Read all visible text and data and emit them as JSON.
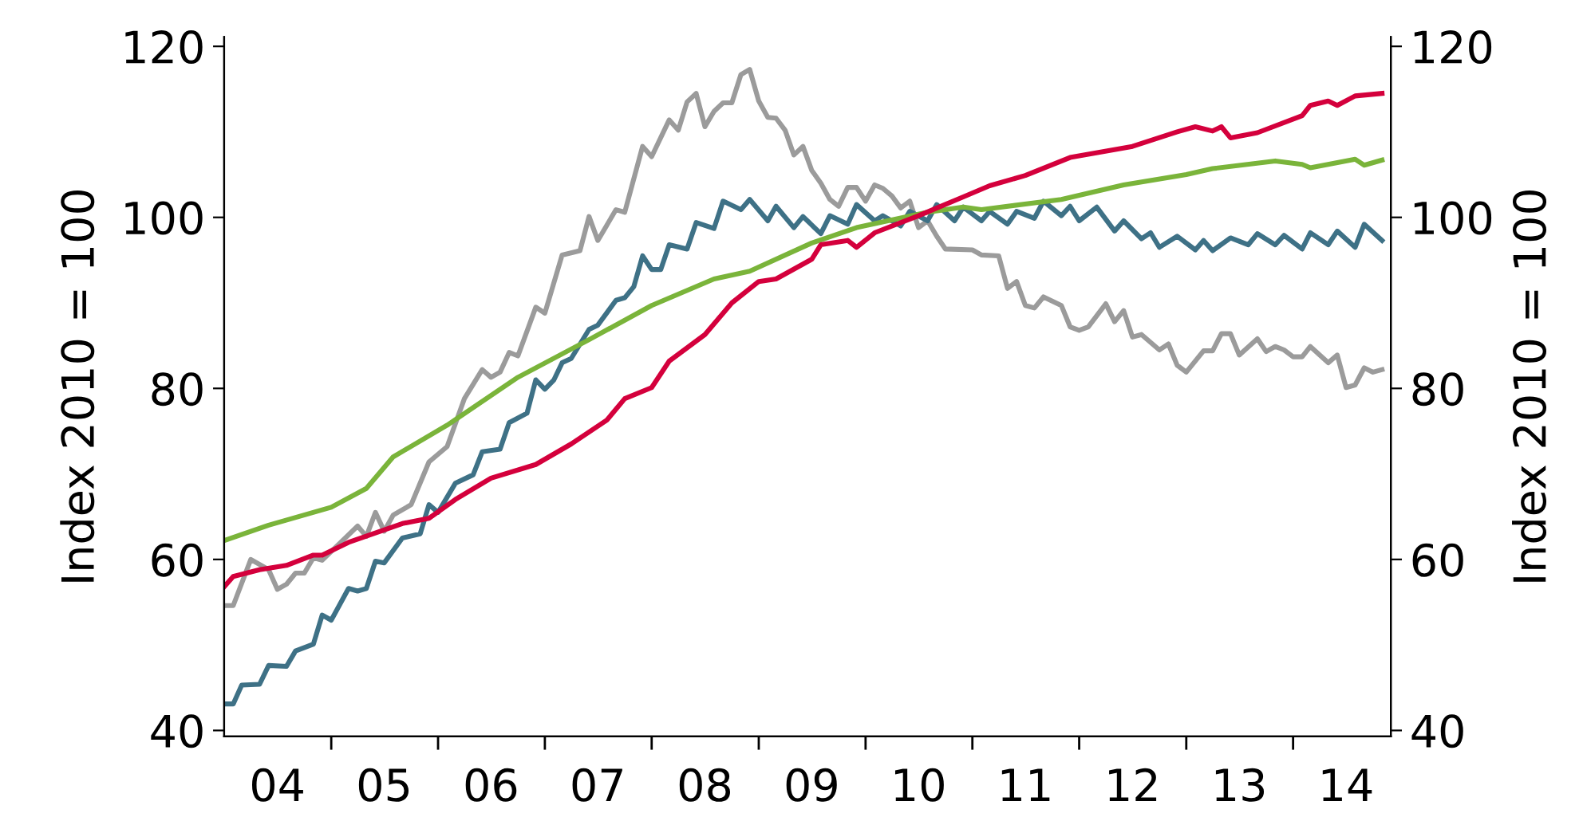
{
  "chart_data": {
    "type": "line",
    "ylabel": "Index 2010 = 100",
    "y2label": "Index 2010 = 100",
    "xlim": [
      "2004-01-01",
      "2014-12-01"
    ],
    "ylim": [
      39.3,
      121.1
    ],
    "y2lim": [
      39.3,
      121.1
    ],
    "yticks": [
      40,
      60,
      80,
      100,
      120
    ],
    "y2ticks": [
      40,
      60,
      80,
      100,
      120
    ],
    "xticks": [
      {
        "value": "2004-07-01",
        "label": "04"
      },
      {
        "value": "2005-07-01",
        "label": "05"
      },
      {
        "value": "2006-07-01",
        "label": "06"
      },
      {
        "value": "2007-07-01",
        "label": "07"
      },
      {
        "value": "2008-07-01",
        "label": "08"
      },
      {
        "value": "2009-07-01",
        "label": "09"
      },
      {
        "value": "2010-07-01",
        "label": "10"
      },
      {
        "value": "2011-07-01",
        "label": "11"
      },
      {
        "value": "2012-07-01",
        "label": "12"
      },
      {
        "value": "2013-07-01",
        "label": "13"
      },
      {
        "value": "2014-07-01",
        "label": "14"
      },
      {
        "value": "2005-01-01",
        "label": null
      },
      {
        "value": "2006-01-01",
        "label": null
      },
      {
        "value": "2007-01-01",
        "label": null
      },
      {
        "value": "2008-01-01",
        "label": null
      },
      {
        "value": "2009-01-01",
        "label": null
      },
      {
        "value": "2010-01-01",
        "label": null
      },
      {
        "value": "2011-01-01",
        "label": null
      },
      {
        "value": "2012-01-01",
        "label": null
      },
      {
        "value": "2013-01-01",
        "label": null
      },
      {
        "value": "2014-01-01",
        "label": null
      }
    ],
    "line_style": "solid",
    "series": [
      {
        "color": "#9b9b9b",
        "x": [
          "2004-01",
          "2004-02",
          "2004-04",
          "2004-06",
          "2004-07",
          "2004-08",
          "2004-09",
          "2004-10",
          "2004-11",
          "2004-12",
          "2005-04",
          "2005-05",
          "2005-06",
          "2005-07",
          "2005-08",
          "2005-10",
          "2005-12",
          "2006-02",
          "2006-04",
          "2006-06",
          "2006-07",
          "2006-08",
          "2006-09",
          "2006-10",
          "2006-12",
          "2007-01",
          "2007-03",
          "2007-05",
          "2007-06",
          "2007-07",
          "2007-09",
          "2007-10",
          "2007-12",
          "2008-01",
          "2008-03",
          "2008-04",
          "2008-05",
          "2008-06",
          "2008-07",
          "2008-08",
          "2008-09",
          "2008-10",
          "2008-11",
          "2008-12",
          "2009-01",
          "2009-02",
          "2009-03",
          "2009-04",
          "2009-05",
          "2009-06",
          "2009-07",
          "2009-08",
          "2009-09",
          "2009-10",
          "2009-11",
          "2009-12",
          "2010-01",
          "2010-02",
          "2010-03",
          "2010-04",
          "2010-05",
          "2010-06",
          "2010-07",
          "2010-08",
          "2010-09",
          "2010-10",
          "2011-01",
          "2011-02",
          "2011-04",
          "2011-05",
          "2011-06",
          "2011-07",
          "2011-08",
          "2011-09",
          "2011-11",
          "2011-12",
          "2012-01",
          "2012-02",
          "2012-04",
          "2012-05",
          "2012-06",
          "2012-07",
          "2012-08",
          "2012-10",
          "2012-11",
          "2012-12",
          "2013-01",
          "2013-03",
          "2013-04",
          "2013-05",
          "2013-06",
          "2013-07",
          "2013-09",
          "2013-10",
          "2013-11",
          "2013-12",
          "2014-01",
          "2014-02",
          "2014-03",
          "2014-05",
          "2014-06",
          "2014-07",
          "2014-08",
          "2014-09",
          "2014-10",
          "2014-11"
        ],
        "values": [
          54.6,
          54.6,
          60.0,
          58.8,
          56.5,
          57.1,
          58.4,
          58.4,
          60.2,
          59.9,
          63.9,
          62.7,
          65.5,
          63.3,
          65.2,
          66.4,
          71.4,
          73.2,
          78.8,
          82.2,
          81.3,
          81.9,
          84.2,
          83.8,
          89.5,
          88.8,
          95.6,
          96.1,
          100.1,
          97.3,
          100.9,
          100.6,
          108.3,
          107.1,
          111.4,
          110.2,
          113.5,
          114.5,
          110.6,
          112.4,
          113.4,
          113.4,
          116.7,
          117.3,
          113.6,
          111.7,
          111.6,
          110.2,
          107.3,
          108.3,
          105.5,
          104.0,
          102.1,
          101.3,
          103.5,
          103.5,
          101.9,
          103.8,
          103.4,
          102.5,
          101.1,
          101.9,
          98.8,
          99.6,
          97.8,
          96.3,
          96.2,
          95.6,
          95.5,
          91.7,
          92.5,
          89.7,
          89.4,
          90.7,
          89.7,
          87.2,
          86.8,
          87.2,
          89.9,
          87.8,
          89.1,
          86.0,
          86.3,
          84.5,
          85.2,
          82.7,
          81.9,
          84.4,
          84.4,
          86.4,
          86.4,
          83.9,
          85.8,
          84.3,
          84.9,
          84.5,
          83.7,
          83.7,
          84.9,
          83.0,
          83.9,
          80.1,
          80.4,
          82.4,
          81.9,
          82.2
        ]
      },
      {
        "color": "#3e7186",
        "x": [
          "2004-01",
          "2004-02",
          "2004-03",
          "2004-05",
          "2004-06",
          "2004-08",
          "2004-09",
          "2004-11",
          "2004-12",
          "2005-01",
          "2005-03",
          "2005-04",
          "2005-05",
          "2005-06",
          "2005-07",
          "2005-09",
          "2005-11",
          "2005-12",
          "2006-01",
          "2006-03",
          "2006-05",
          "2006-06",
          "2006-08",
          "2006-09",
          "2006-11",
          "2006-12",
          "2007-01",
          "2007-02",
          "2007-03",
          "2007-04",
          "2007-06",
          "2007-07",
          "2007-09",
          "2007-10",
          "2007-11",
          "2007-12",
          "2008-01",
          "2008-02",
          "2008-03",
          "2008-05",
          "2008-06",
          "2008-08",
          "2008-09",
          "2008-11",
          "2008-12",
          "2009-02",
          "2009-03",
          "2009-05",
          "2009-06",
          "2009-08",
          "2009-09",
          "2009-11",
          "2009-12",
          "2010-02",
          "2010-03",
          "2010-05",
          "2010-06",
          "2010-08",
          "2010-09",
          "2010-11",
          "2010-12",
          "2011-02",
          "2011-03",
          "2011-05",
          "2011-06",
          "2011-08",
          "2011-09",
          "2011-11",
          "2011-12",
          "2012-01",
          "2012-03",
          "2012-05",
          "2012-06",
          "2012-08",
          "2012-09",
          "2012-10",
          "2012-12",
          "2013-02",
          "2013-03",
          "2013-04",
          "2013-06",
          "2013-08",
          "2013-09",
          "2013-11",
          "2013-12",
          "2014-02",
          "2014-03",
          "2014-05",
          "2014-06",
          "2014-08",
          "2014-09",
          "2014-11"
        ],
        "values": [
          43.1,
          43.1,
          45.3,
          45.4,
          47.6,
          47.5,
          49.3,
          50.1,
          53.5,
          52.9,
          56.6,
          56.3,
          56.6,
          59.8,
          59.6,
          62.5,
          63.0,
          66.4,
          65.5,
          68.9,
          69.9,
          72.6,
          72.9,
          76.0,
          77.1,
          81.0,
          79.9,
          81.0,
          83.0,
          83.5,
          86.9,
          87.4,
          90.3,
          90.6,
          91.9,
          95.5,
          93.9,
          93.9,
          96.8,
          96.3,
          99.4,
          98.7,
          101.9,
          100.9,
          102.1,
          99.6,
          101.3,
          98.8,
          100.1,
          98.1,
          100.2,
          99.2,
          101.5,
          99.6,
          100.2,
          99.0,
          100.7,
          99.6,
          101.5,
          99.6,
          101.2,
          99.6,
          100.7,
          99.2,
          100.7,
          99.9,
          101.9,
          100.2,
          101.3,
          99.6,
          101.2,
          98.4,
          99.6,
          97.5,
          98.2,
          96.5,
          97.8,
          96.2,
          97.3,
          96.1,
          97.6,
          96.8,
          98.1,
          96.8,
          97.9,
          96.3,
          98.2,
          96.8,
          98.4,
          96.5,
          99.2,
          97.3
        ]
      },
      {
        "color": "#7ab43a",
        "x": [
          "2004-01",
          "2004-06",
          "2005-01",
          "2005-05",
          "2005-08",
          "2006-02",
          "2006-10",
          "2007-06",
          "2008-01",
          "2008-08",
          "2008-12",
          "2009-07",
          "2009-12",
          "2010-08",
          "2010-12",
          "2011-02",
          "2011-11",
          "2012-06",
          "2013-01",
          "2013-04",
          "2013-11",
          "2014-02",
          "2014-03",
          "2014-08",
          "2014-09",
          "2014-11"
        ],
        "values": [
          62.2,
          64.0,
          66.1,
          68.3,
          72.0,
          75.7,
          81.3,
          85.7,
          89.7,
          92.8,
          93.7,
          97.0,
          98.8,
          100.6,
          101.2,
          100.9,
          102.1,
          103.8,
          105.0,
          105.7,
          106.6,
          106.2,
          105.8,
          106.8,
          106.1,
          106.7
        ]
      },
      {
        "color": "#d4003c",
        "x": [
          "2004-01",
          "2004-02",
          "2004-05",
          "2004-08",
          "2004-11",
          "2004-12",
          "2005-03",
          "2005-09",
          "2005-12",
          "2006-03",
          "2006-07",
          "2006-12",
          "2007-04",
          "2007-08",
          "2007-10",
          "2008-01",
          "2008-03",
          "2008-07",
          "2008-10",
          "2009-01",
          "2009-03",
          "2009-07",
          "2009-08",
          "2009-11",
          "2009-12",
          "2010-02",
          "2010-07",
          "2010-12",
          "2011-03",
          "2011-07",
          "2011-12",
          "2012-07",
          "2012-12",
          "2013-02",
          "2013-04",
          "2013-05",
          "2013-06",
          "2013-09",
          "2014-02",
          "2014-03",
          "2014-05",
          "2014-06",
          "2014-08",
          "2014-11"
        ],
        "values": [
          56.8,
          58.0,
          58.8,
          59.3,
          60.5,
          60.5,
          62.0,
          64.2,
          64.8,
          67.0,
          69.5,
          71.1,
          73.5,
          76.3,
          78.8,
          80.1,
          83.2,
          86.3,
          90.0,
          92.5,
          92.8,
          95.1,
          96.8,
          97.3,
          96.5,
          98.2,
          100.2,
          102.4,
          103.7,
          104.9,
          107.0,
          108.3,
          110.0,
          110.6,
          110.1,
          110.6,
          109.3,
          109.9,
          111.9,
          113.1,
          113.6,
          113.1,
          114.2,
          114.5
        ]
      }
    ]
  }
}
